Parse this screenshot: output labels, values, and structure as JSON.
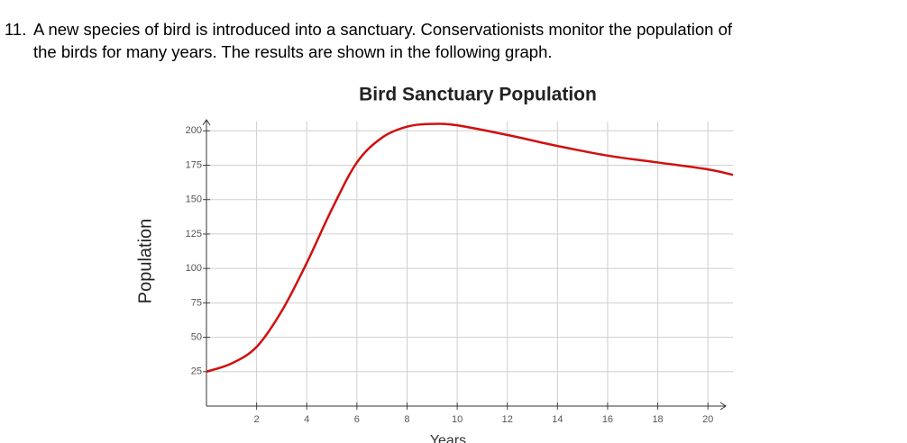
{
  "question": {
    "number": "11.",
    "lines": [
      "A new species of bird is introduced into a sanctuary. Conservationists monitor the population of",
      "the birds for many years. The results are shown in the following graph."
    ]
  },
  "chart_data": {
    "type": "line",
    "title": "Bird Sanctuary Population",
    "x_label": "Years",
    "y_label": "Population",
    "x": [
      0,
      1,
      2,
      3,
      4,
      5,
      6,
      7,
      8,
      9,
      10,
      12,
      14,
      16,
      18,
      20,
      21
    ],
    "series": [
      {
        "name": "Population",
        "color": "#d01010",
        "values": [
          25,
          31,
          43,
          69,
          104,
          143,
          177,
          195,
          203,
          205,
          204,
          197,
          189,
          182,
          177,
          172,
          168
        ]
      }
    ],
    "xlim": [
      0,
      21
    ],
    "ylim": [
      0,
      210
    ],
    "xticks": [
      2,
      4,
      6,
      8,
      10,
      12,
      14,
      16,
      18,
      20
    ],
    "yticks": [
      25,
      50,
      75,
      100,
      125,
      150,
      175,
      200
    ],
    "grid": true
  }
}
